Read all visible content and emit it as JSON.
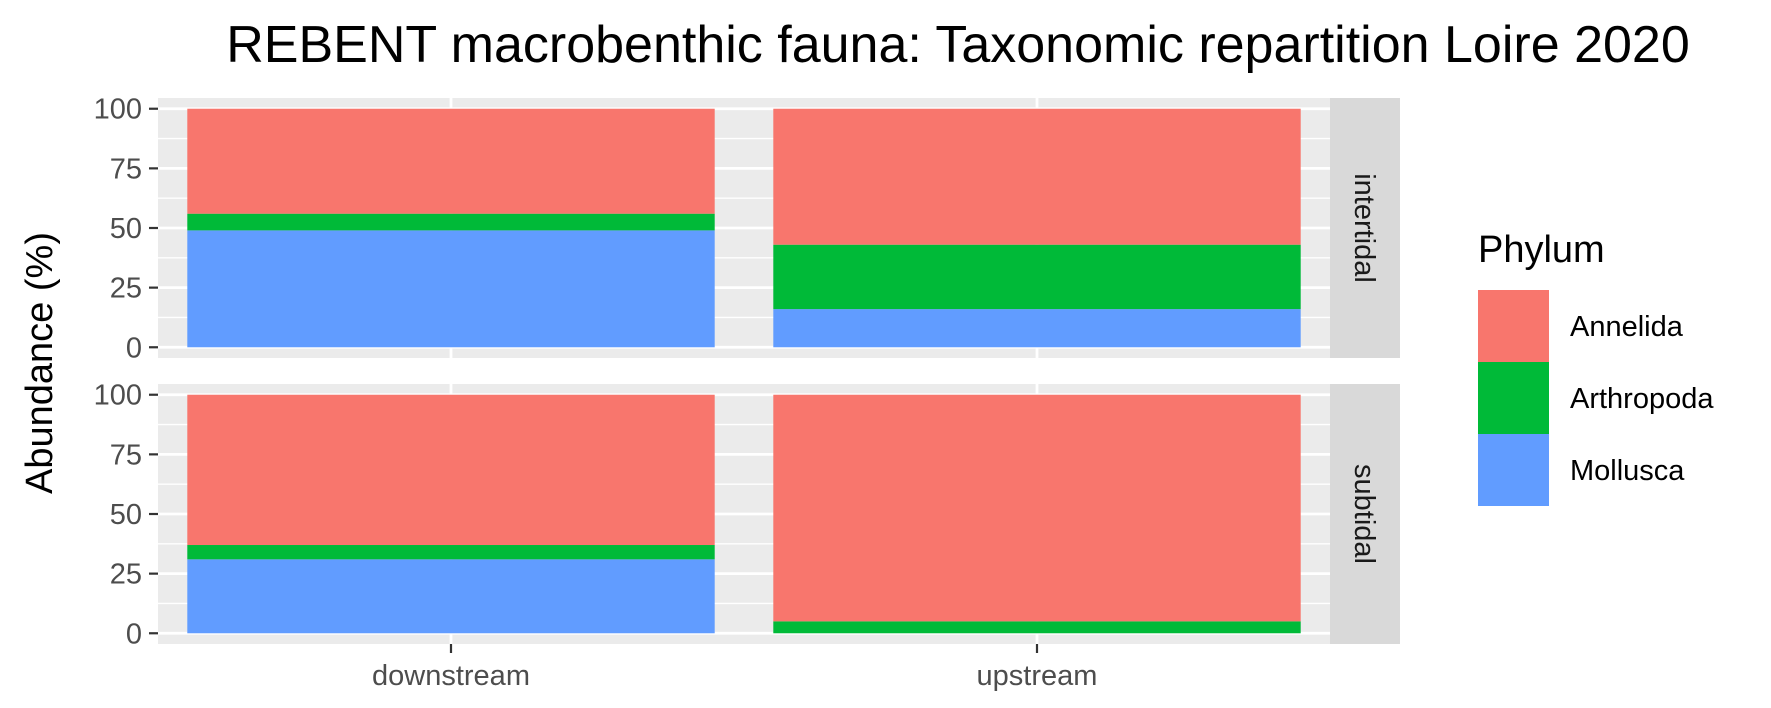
{
  "chart_data": {
    "type": "bar",
    "stacked": true,
    "title": "REBENT macrobenthic fauna: Taxonomic repartition Loire 2020",
    "xlabel": "",
    "ylabel": "Abundance (%)",
    "ylim": [
      0,
      100
    ],
    "yticks": [
      "0",
      "25",
      "50",
      "75",
      "100"
    ],
    "grid": true,
    "categories": [
      "downstream",
      "upstream"
    ],
    "facets": [
      {
        "label": "intertidal",
        "series": [
          {
            "name": "Annelida",
            "values": [
              44,
              57
            ]
          },
          {
            "name": "Arthropoda",
            "values": [
              7,
              27
            ]
          },
          {
            "name": "Mollusca",
            "values": [
              49,
              16
            ]
          }
        ]
      },
      {
        "label": "subtidal",
        "series": [
          {
            "name": "Annelida",
            "values": [
              63,
              95
            ]
          },
          {
            "name": "Arthropoda",
            "values": [
              6,
              5
            ]
          },
          {
            "name": "Mollusca",
            "values": [
              31,
              0
            ]
          }
        ]
      }
    ],
    "legend": {
      "title": "Phylum",
      "position": "right",
      "entries": [
        {
          "name": "Annelida",
          "color": "#F8766D"
        },
        {
          "name": "Arthropoda",
          "color": "#00BA38"
        },
        {
          "name": "Mollusca",
          "color": "#619CFF"
        }
      ]
    },
    "stack_order": [
      "Mollusca",
      "Arthropoda",
      "Annelida"
    ]
  }
}
